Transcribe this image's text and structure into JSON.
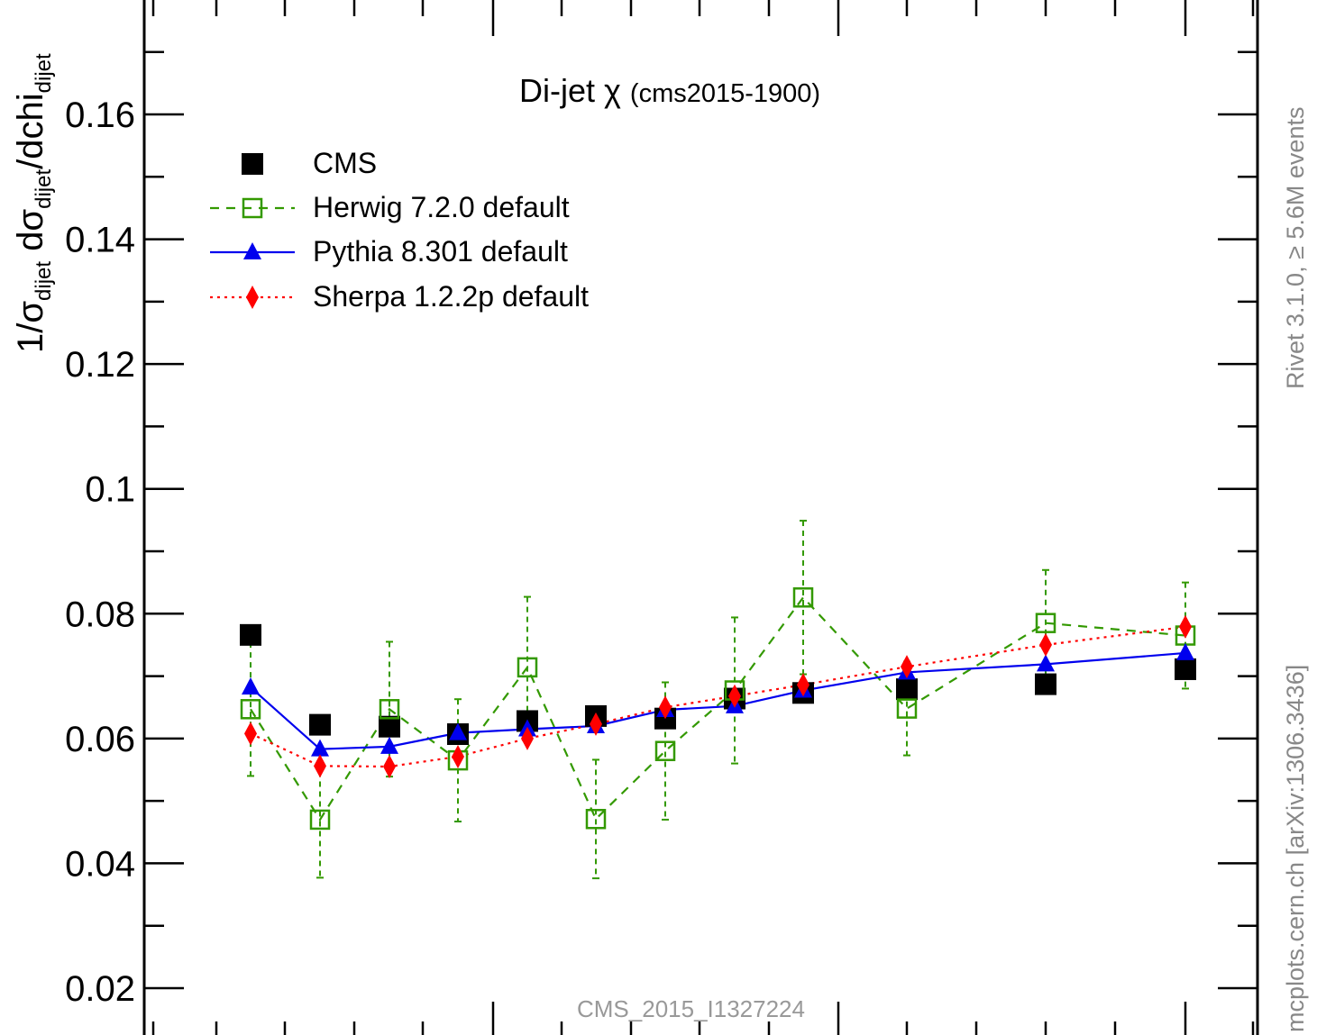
{
  "chart_data": {
    "type": "line",
    "title_main": "Di-jet χ",
    "title_sub": "(cms2015-1900)",
    "ylabel_parts": {
      "a": "1/σ",
      "a_sub": "dijet",
      "b": " dσ",
      "b_sub": "dijet",
      "c": "/dchi",
      "c_sub": "dijet"
    },
    "ylim": [
      0.0145,
      0.175
    ],
    "y_ticks": [
      0.02,
      0.04,
      0.06,
      0.08,
      0.1,
      0.12,
      0.14,
      0.16
    ],
    "y_tick_labels": [
      "0.02",
      "0.04",
      "0.06",
      "0.08",
      "0.1",
      "0.12",
      "0.14",
      "0.16"
    ],
    "x": [
      1.5,
      2.5,
      3.5,
      4.5,
      5.5,
      6.5,
      7.5,
      8.5,
      9.5,
      11,
      13,
      15
    ],
    "legend_position": "top-left",
    "series": [
      {
        "name": "CMS",
        "color": "#000000",
        "marker": "square-filled",
        "line": "none",
        "values": [
          0.0766,
          0.0622,
          0.0619,
          0.0607,
          0.0628,
          0.0636,
          0.0632,
          0.0664,
          0.0673,
          0.0679,
          0.0687,
          0.0711
        ]
      },
      {
        "name": "Herwig 7.2.0 default",
        "color": "#339900",
        "marker": "square-open",
        "line": "dashed",
        "values": [
          0.0647,
          0.047,
          0.0647,
          0.0565,
          0.0714,
          0.0471,
          0.058,
          0.0677,
          0.0826,
          0.0648,
          0.0785,
          0.0765
        ],
        "errors": [
          0.0107,
          0.0093,
          0.0108,
          0.0098,
          0.0113,
          0.0095,
          0.011,
          0.0117,
          0.0123,
          0.0075,
          0.0085,
          0.0085
        ]
      },
      {
        "name": "Pythia 8.301 default",
        "color": "#0000ee",
        "marker": "triangle-filled",
        "line": "solid",
        "values": [
          0.0682,
          0.0583,
          0.0587,
          0.0609,
          0.0615,
          0.062,
          0.0646,
          0.0652,
          0.0677,
          0.0706,
          0.0719,
          0.0737
        ]
      },
      {
        "name": "Sherpa 1.2.2p default",
        "color": "#ff0000",
        "marker": "diamond-filled",
        "line": "dotted",
        "values": [
          0.0608,
          0.0556,
          0.0555,
          0.0571,
          0.06,
          0.0623,
          0.065,
          0.0668,
          0.0686,
          0.0715,
          0.075,
          0.0779
        ]
      }
    ],
    "annotations": {
      "watermark": "CMS_2015_I1327224",
      "side_top": "Rivet 3.1.0, ≥ 5.6M events",
      "side_bottom": "mcplots.cern.ch [arXiv:1306.3436]"
    }
  }
}
